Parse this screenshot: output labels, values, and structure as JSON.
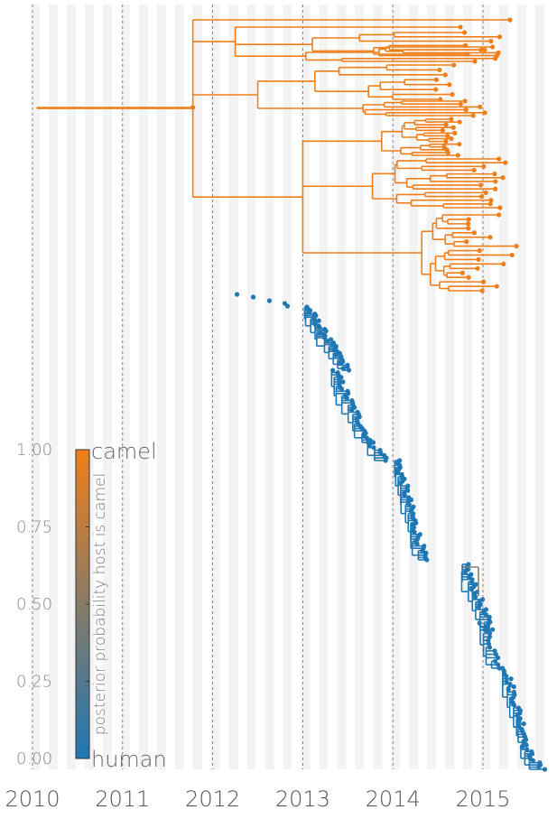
{
  "chart_data": {
    "type": "phylogenetic-tree",
    "x_axis": {
      "unit": "year",
      "ticks": [
        2010,
        2011,
        2012,
        2013,
        2014,
        2015
      ],
      "tick_labels": [
        "2010",
        "2011",
        "2012",
        "2013",
        "2014",
        "2015"
      ],
      "range": [
        2009.98,
        2015.72
      ],
      "dashed_gridlines_at_ticks": true,
      "background_bands": "alternating light grey stripes every ~0.1 year"
    },
    "colors": {
      "camel": "#f07f1a",
      "human": "#1f77b4",
      "mid": "#8a7e70"
    },
    "colorbar": {
      "title": "posterior probability host is camel",
      "ticks": [
        0.0,
        0.25,
        0.5,
        0.75,
        1.0
      ],
      "tick_labels": [
        "0.00",
        "0.25",
        "0.50",
        "0.75",
        "1.00"
      ],
      "low_label": "human",
      "high_label": "camel",
      "low_color": "#1f77b4",
      "high_color": "#f07f1a"
    },
    "clades": [
      {
        "host": "camel",
        "probability": 1.0,
        "tips": 90,
        "root_date": 2010.05,
        "tip_date_range": [
          2014.7,
          2015.45
        ]
      },
      {
        "host": "human",
        "probability": 0.0,
        "tips": 260,
        "tip_date_range": [
          2012.27,
          2015.68
        ]
      }
    ]
  }
}
